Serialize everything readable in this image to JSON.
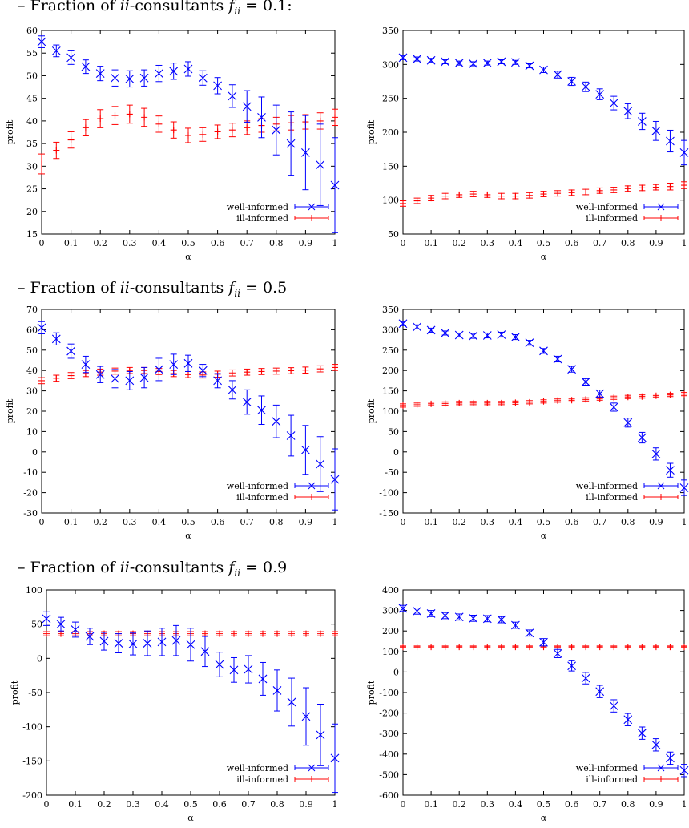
{
  "headings": [
    {
      "prefix": "– Fraction of ",
      "math": "ii",
      "mid": "-consultants ",
      "f": "f",
      "sub": "ii",
      "rest": " = 0.1:"
    },
    {
      "prefix": "– Fraction of ",
      "math": "ii",
      "mid": "-consultants ",
      "f": "f",
      "sub": "ii",
      "rest": " = 0.5"
    },
    {
      "prefix": "– Fraction of ",
      "math": "ii",
      "mid": "-consultants ",
      "f": "f",
      "sub": "ii",
      "rest": " = 0.9"
    }
  ],
  "colors": {
    "well_informed": "#0000ff",
    "ill_informed": "#ff0000"
  },
  "chart_data": [
    {
      "type": "scatter",
      "panel": "f=0.1 left",
      "xlabel": "α",
      "ylabel": "profit",
      "xlim": [
        0,
        1
      ],
      "ylim": [
        15,
        60
      ],
      "xticks": [
        0,
        0.1,
        0.2,
        0.3,
        0.4,
        0.5,
        0.6,
        0.7,
        0.8,
        0.9,
        1
      ],
      "yticks": [
        15,
        20,
        25,
        30,
        35,
        40,
        45,
        50,
        55,
        60
      ],
      "x": [
        0,
        0.05,
        0.1,
        0.15,
        0.2,
        0.25,
        0.3,
        0.35,
        0.4,
        0.45,
        0.5,
        0.55,
        0.6,
        0.65,
        0.7,
        0.75,
        0.8,
        0.85,
        0.9,
        0.95,
        1
      ],
      "legend": "bottom-right",
      "series": [
        {
          "name": "well-informed",
          "marker": "x",
          "values": [
            57.5,
            55.5,
            54,
            52,
            50.5,
            49.5,
            49.3,
            49.5,
            50.5,
            51,
            51.5,
            49.5,
            47.8,
            45.5,
            43.2,
            40.8,
            38,
            35,
            33,
            30.3,
            25.8
          ],
          "errors": [
            1.3,
            1.3,
            1.5,
            1.5,
            1.6,
            1.8,
            1.8,
            1.8,
            1.8,
            1.8,
            1.6,
            1.6,
            1.8,
            2.5,
            3.5,
            4.5,
            5.5,
            7,
            8.2,
            9,
            10.5
          ]
        },
        {
          "name": "ill-informed",
          "marker": "+",
          "values": [
            30.5,
            33.5,
            35.8,
            38.5,
            40.5,
            41.2,
            41.5,
            40.8,
            39.3,
            38,
            36.8,
            37,
            37.6,
            38,
            38.5,
            39,
            39.3,
            39.6,
            39.8,
            40,
            40.8
          ],
          "errors": [
            2.2,
            1.8,
            1.8,
            1.8,
            2,
            2,
            2,
            2,
            1.8,
            1.8,
            1.6,
            1.5,
            1.5,
            1.5,
            1.5,
            1.5,
            1.5,
            1.6,
            1.6,
            1.8,
            1.8
          ]
        }
      ]
    },
    {
      "type": "scatter",
      "panel": "f=0.1 right",
      "xlabel": "α",
      "ylabel": "profit",
      "xlim": [
        0,
        1
      ],
      "ylim": [
        50,
        350
      ],
      "xticks": [
        0,
        0.1,
        0.2,
        0.3,
        0.4,
        0.5,
        0.6,
        0.7,
        0.8,
        0.9,
        1
      ],
      "yticks": [
        50,
        100,
        150,
        200,
        250,
        300,
        350
      ],
      "x": [
        0,
        0.05,
        0.1,
        0.15,
        0.2,
        0.25,
        0.3,
        0.35,
        0.4,
        0.45,
        0.5,
        0.55,
        0.6,
        0.65,
        0.7,
        0.75,
        0.8,
        0.85,
        0.9,
        0.95,
        1
      ],
      "legend": "bottom-right",
      "series": [
        {
          "name": "well-informed",
          "marker": "x",
          "values": [
            310,
            308,
            306,
            304,
            302,
            301,
            302,
            304,
            303,
            298,
            292,
            285,
            275,
            267,
            256,
            243,
            231,
            216,
            202,
            187,
            170
          ],
          "errors": [
            3,
            3,
            3,
            3,
            3,
            3,
            3,
            3,
            3,
            3,
            4,
            5,
            6,
            7,
            8,
            10,
            11,
            12,
            14,
            16,
            18
          ]
        },
        {
          "name": "ill-informed",
          "marker": "+",
          "values": [
            95,
            99,
            103,
            106,
            108,
            109,
            108,
            106,
            106,
            107,
            109,
            110,
            111,
            112,
            114,
            115,
            117,
            118,
            119,
            120,
            122
          ],
          "errors": [
            4,
            4,
            4,
            4,
            4,
            4,
            4,
            4,
            4,
            4,
            4,
            4,
            4,
            4,
            4,
            4,
            4,
            4,
            4,
            5,
            5
          ]
        }
      ]
    },
    {
      "type": "scatter",
      "panel": "f=0.5 left",
      "xlabel": "α",
      "ylabel": "profit",
      "xlim": [
        0,
        1
      ],
      "ylim": [
        -30,
        70
      ],
      "xticks": [
        0,
        0.1,
        0.2,
        0.3,
        0.4,
        0.5,
        0.6,
        0.7,
        0.8,
        0.9,
        1
      ],
      "yticks": [
        -30,
        -20,
        -10,
        0,
        10,
        20,
        30,
        40,
        50,
        60,
        70
      ],
      "x": [
        0,
        0.05,
        0.1,
        0.15,
        0.2,
        0.25,
        0.3,
        0.35,
        0.4,
        0.45,
        0.5,
        0.55,
        0.6,
        0.65,
        0.7,
        0.75,
        0.8,
        0.85,
        0.9,
        0.95,
        1
      ],
      "legend": "bottom-right",
      "series": [
        {
          "name": "well-informed",
          "marker": "x",
          "values": [
            61,
            55.5,
            49.5,
            43,
            38,
            36,
            35,
            36.5,
            40.5,
            43,
            43.5,
            40,
            35,
            30.5,
            24.5,
            20.5,
            15,
            8,
            1,
            -6,
            -13.5
          ],
          "errors": [
            3,
            3,
            3.5,
            4,
            4,
            4.5,
            4.5,
            5,
            5.5,
            5,
            4,
            3,
            3.5,
            4.5,
            6,
            7,
            8,
            10,
            12,
            13.5,
            15
          ]
        },
        {
          "name": "ill-informed",
          "marker": "+",
          "values": [
            35,
            36.2,
            37.5,
            38.5,
            39.2,
            39.7,
            40,
            40,
            39.5,
            38.5,
            38,
            37.8,
            38.2,
            38.8,
            39.2,
            39.5,
            39.7,
            39.9,
            40.2,
            40.8,
            41.5
          ],
          "errors": [
            1.5,
            1.5,
            1.5,
            1.5,
            1.5,
            1.5,
            1.5,
            1.5,
            1.5,
            1.5,
            1.5,
            1.5,
            1.5,
            1.5,
            1.5,
            1.5,
            1.5,
            1.5,
            1.5,
            1.5,
            1.5
          ]
        }
      ]
    },
    {
      "type": "scatter",
      "panel": "f=0.5 right",
      "xlabel": "α",
      "ylabel": "profit",
      "xlim": [
        0,
        1
      ],
      "ylim": [
        -150,
        350
      ],
      "xticks": [
        0,
        0.1,
        0.2,
        0.3,
        0.4,
        0.5,
        0.6,
        0.7,
        0.8,
        0.9,
        1
      ],
      "yticks": [
        -150,
        -100,
        -50,
        0,
        50,
        100,
        150,
        200,
        250,
        300,
        350
      ],
      "x": [
        0,
        0.05,
        0.1,
        0.15,
        0.2,
        0.25,
        0.3,
        0.35,
        0.4,
        0.45,
        0.5,
        0.55,
        0.6,
        0.65,
        0.7,
        0.75,
        0.8,
        0.85,
        0.9,
        0.95,
        1
      ],
      "legend": "bottom-right",
      "series": [
        {
          "name": "well-informed",
          "marker": "x",
          "values": [
            315,
            307,
            299,
            292,
            287,
            285,
            286,
            288,
            282,
            268,
            248,
            228,
            203,
            172,
            143,
            110,
            72,
            35,
            -5,
            -45,
            -88
          ],
          "errors": [
            5,
            5,
            5,
            5,
            5,
            6,
            6,
            6,
            6,
            6,
            6,
            7,
            7,
            8,
            9,
            10,
            11,
            13,
            15,
            17,
            19
          ]
        },
        {
          "name": "ill-informed",
          "marker": "+",
          "values": [
            114,
            116,
            118,
            119,
            120,
            120,
            120,
            120,
            121,
            122,
            124,
            126,
            127,
            129,
            131,
            133,
            135,
            136,
            138,
            140,
            142
          ],
          "errors": [
            4,
            4,
            4,
            4,
            4,
            4,
            4,
            4,
            4,
            4,
            4,
            4,
            4,
            4,
            4,
            4,
            4,
            4,
            4,
            4,
            4
          ]
        }
      ]
    },
    {
      "type": "scatter",
      "panel": "f=0.9 left",
      "xlabel": "α",
      "ylabel": "profit",
      "xlim": [
        0,
        1
      ],
      "ylim": [
        -200,
        100
      ],
      "xticks": [
        0,
        0.1,
        0.2,
        0.3,
        0.4,
        0.5,
        0.6,
        0.7,
        0.8,
        0.9,
        1
      ],
      "yticks": [
        -200,
        -150,
        -100,
        -50,
        0,
        50,
        100
      ],
      "x": [
        0,
        0.05,
        0.1,
        0.15,
        0.2,
        0.25,
        0.3,
        0.35,
        0.4,
        0.45,
        0.5,
        0.55,
        0.6,
        0.65,
        0.7,
        0.75,
        0.8,
        0.85,
        0.9,
        0.95,
        1
      ],
      "legend": "bottom-right",
      "series": [
        {
          "name": "well-informed",
          "marker": "x",
          "values": [
            58,
            50,
            42,
            32,
            25,
            22,
            21,
            22,
            24,
            26,
            20,
            10,
            -9,
            -17,
            -16,
            -30,
            -47,
            -64,
            -85,
            -112,
            -146
          ],
          "errors": [
            10,
            10,
            11,
            12,
            13,
            14,
            16,
            18,
            20,
            22,
            24,
            22,
            18,
            18,
            20,
            24,
            30,
            35,
            42,
            45,
            50
          ]
        },
        {
          "name": "ill-informed",
          "marker": "+",
          "values": [
            36,
            36,
            36,
            36,
            36,
            36,
            36,
            36,
            36,
            36,
            36,
            36,
            36,
            36,
            36,
            36,
            36,
            36,
            36,
            36,
            36
          ],
          "errors": [
            3,
            3,
            3,
            3,
            3,
            3,
            3,
            3,
            3,
            3,
            3,
            3,
            3,
            3,
            3,
            3,
            3,
            3,
            3,
            3,
            3
          ]
        }
      ]
    },
    {
      "type": "scatter",
      "panel": "f=0.9 right",
      "xlabel": "α",
      "ylabel": "profit",
      "xlim": [
        0,
        1
      ],
      "ylim": [
        -600,
        400
      ],
      "xticks": [
        0,
        0.1,
        0.2,
        0.3,
        0.4,
        0.5,
        0.6,
        0.7,
        0.8,
        0.9,
        1
      ],
      "yticks": [
        -600,
        -500,
        -400,
        -300,
        -200,
        -100,
        0,
        100,
        200,
        300,
        400
      ],
      "x": [
        0,
        0.05,
        0.1,
        0.15,
        0.2,
        0.25,
        0.3,
        0.35,
        0.4,
        0.45,
        0.5,
        0.55,
        0.6,
        0.65,
        0.7,
        0.75,
        0.8,
        0.85,
        0.9,
        0.95,
        1
      ],
      "legend": "bottom-right",
      "series": [
        {
          "name": "well-informed",
          "marker": "x",
          "values": [
            310,
            297,
            285,
            275,
            268,
            262,
            260,
            255,
            228,
            190,
            145,
            90,
            30,
            -30,
            -95,
            -165,
            -232,
            -298,
            -355,
            -420,
            -480
          ],
          "errors": [
            15,
            15,
            15,
            15,
            15,
            15,
            15,
            15,
            15,
            15,
            18,
            20,
            25,
            28,
            30,
            30,
            30,
            30,
            30,
            30,
            30
          ]
        },
        {
          "name": "ill-informed",
          "marker": "+",
          "values": [
            122,
            122,
            122,
            122,
            122,
            122,
            122,
            122,
            122,
            122,
            122,
            122,
            122,
            122,
            122,
            122,
            122,
            122,
            122,
            122,
            122
          ],
          "errors": [
            5,
            5,
            5,
            5,
            5,
            5,
            5,
            5,
            5,
            5,
            5,
            5,
            5,
            5,
            5,
            5,
            5,
            5,
            5,
            5,
            5
          ]
        }
      ]
    }
  ]
}
